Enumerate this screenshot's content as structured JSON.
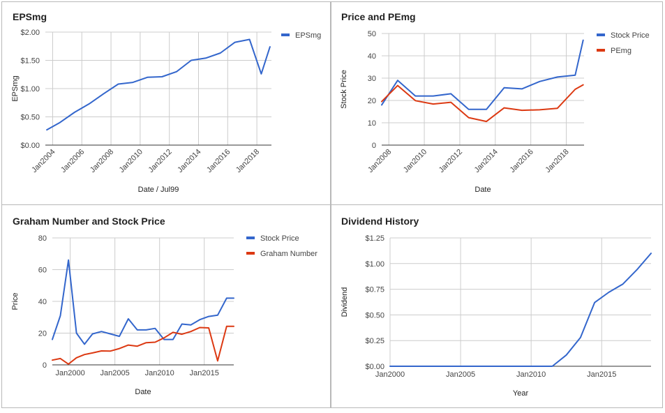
{
  "colors": {
    "blue": "#3366cc",
    "red": "#dc3912"
  },
  "chart_data": [
    {
      "type": "line",
      "title": "EPSmg",
      "xlabel": "Date / Jul99",
      "ylabel": "EPSmg",
      "xlim": [
        2003.5,
        2019.0
      ],
      "ylim": [
        0,
        2
      ],
      "xticks": [
        {
          "v": 2004,
          "label": "Jan2004"
        },
        {
          "v": 2006,
          "label": "Jan2006"
        },
        {
          "v": 2008,
          "label": "Jan2008"
        },
        {
          "v": 2010,
          "label": "Jan2010"
        },
        {
          "v": 2012,
          "label": "Jan2012"
        },
        {
          "v": 2014,
          "label": "Jan2014"
        },
        {
          "v": 2016,
          "label": "Jan2016"
        },
        {
          "v": 2018,
          "label": "Jan2018"
        }
      ],
      "yticks": [
        {
          "v": 0,
          "label": "$0.00"
        },
        {
          "v": 0.5,
          "label": "$0.50"
        },
        {
          "v": 1,
          "label": "$1.00"
        },
        {
          "v": 1.5,
          "label": "$1.50"
        },
        {
          "v": 2,
          "label": "$2.00"
        }
      ],
      "grid": true,
      "legend": "right",
      "series": [
        {
          "name": "EPSmg",
          "color": "#3366cc",
          "x": [
            2003.6,
            2004.5,
            2005.5,
            2006.5,
            2007.5,
            2008.5,
            2009.5,
            2010.5,
            2011.5,
            2012.5,
            2013.5,
            2014.5,
            2015.5,
            2016.5,
            2017.5,
            2018.3,
            2018.9
          ],
          "y": [
            0.27,
            0.4,
            0.58,
            0.73,
            0.91,
            1.08,
            1.11,
            1.2,
            1.21,
            1.3,
            1.5,
            1.54,
            1.63,
            1.82,
            1.87,
            1.26,
            1.74
          ]
        }
      ]
    },
    {
      "type": "line",
      "title": "Price and PEmg",
      "xlabel": "Date",
      "ylabel": "Stock Price",
      "xlim": [
        2007.6,
        2019.0
      ],
      "ylim": [
        0,
        50
      ],
      "xticks": [
        {
          "v": 2008,
          "label": "Jan2008"
        },
        {
          "v": 2010,
          "label": "Jan2010"
        },
        {
          "v": 2012,
          "label": "Jan2012"
        },
        {
          "v": 2014,
          "label": "Jan2014"
        },
        {
          "v": 2016,
          "label": "Jan2016"
        },
        {
          "v": 2018,
          "label": "Jan2018"
        }
      ],
      "yticks": [
        {
          "v": 0,
          "label": "0"
        },
        {
          "v": 10,
          "label": "10"
        },
        {
          "v": 20,
          "label": "20"
        },
        {
          "v": 30,
          "label": "30"
        },
        {
          "v": 40,
          "label": "40"
        },
        {
          "v": 50,
          "label": "50"
        }
      ],
      "grid": true,
      "legend": "right",
      "series": [
        {
          "name": "Stock Price",
          "color": "#3366cc",
          "x": [
            2007.6,
            2008.5,
            2009.5,
            2010.5,
            2011.5,
            2012.5,
            2013.5,
            2014.5,
            2015.5,
            2016.5,
            2017.5,
            2018.5,
            2018.95
          ],
          "y": [
            18,
            29,
            22,
            22,
            23,
            16,
            16,
            25.7,
            25.2,
            28.5,
            30.5,
            31.3,
            47
          ]
        },
        {
          "name": "PEmg",
          "color": "#dc3912",
          "x": [
            2007.6,
            2008.5,
            2009.5,
            2010.5,
            2011.5,
            2012.5,
            2013.5,
            2014.5,
            2015.5,
            2016.5,
            2017.5,
            2018.5,
            2018.95
          ],
          "y": [
            19.5,
            26.7,
            19.9,
            18.4,
            19.2,
            12.3,
            10.6,
            16.7,
            15.6,
            15.8,
            16.5,
            25,
            27
          ]
        }
      ]
    },
    {
      "type": "line",
      "title": "Graham Number and Stock Price",
      "xlabel": "Date",
      "ylabel": "Price",
      "xlim": [
        1998.0,
        2018.3
      ],
      "ylim": [
        0,
        80
      ],
      "xticks": [
        {
          "v": 2000,
          "label": "Jan2000"
        },
        {
          "v": 2005,
          "label": "Jan2005"
        },
        {
          "v": 2010,
          "label": "Jan2010"
        },
        {
          "v": 2015,
          "label": "Jan2015"
        }
      ],
      "yticks": [
        {
          "v": 0,
          "label": "0"
        },
        {
          "v": 20,
          "label": "20"
        },
        {
          "v": 40,
          "label": "40"
        },
        {
          "v": 60,
          "label": "60"
        },
        {
          "v": 80,
          "label": "80"
        }
      ],
      "grid": true,
      "legend": "right",
      "series": [
        {
          "name": "Stock Price",
          "color": "#3366cc",
          "x": [
            1998.0,
            1998.9,
            1999.8,
            2000.7,
            2001.6,
            2002.5,
            2003.5,
            2004.5,
            2005.5,
            2006.5,
            2007.5,
            2008.5,
            2009.5,
            2010.5,
            2011.5,
            2012.5,
            2013.5,
            2014.5,
            2015.5,
            2016.5,
            2017.5,
            2018.3
          ],
          "y": [
            16,
            31,
            66,
            20,
            13,
            19.5,
            21,
            19.5,
            18,
            29,
            22,
            22,
            23,
            16,
            16,
            25.7,
            25.2,
            28.5,
            30.5,
            31.3,
            42,
            42
          ]
        },
        {
          "name": "Graham Number",
          "color": "#dc3912",
          "x": [
            1998.0,
            1998.9,
            1999.8,
            2000.7,
            2001.6,
            2002.5,
            2003.5,
            2004.5,
            2005.5,
            2006.5,
            2007.5,
            2008.5,
            2009.5,
            2010.5,
            2011.5,
            2012.5,
            2013.5,
            2014.5,
            2015.5,
            2016.5,
            2017.5,
            2018.3
          ],
          "y": [
            3,
            4,
            0.5,
            4.5,
            6.5,
            7.5,
            8.8,
            8.7,
            10.3,
            12.5,
            11.8,
            14,
            14.3,
            17,
            20.5,
            19.3,
            21,
            23.5,
            23.3,
            2.5,
            24.3,
            24.3
          ]
        }
      ]
    },
    {
      "type": "line",
      "title": "Dividend History",
      "xlabel": "Year",
      "ylabel": "Dividend",
      "xlim": [
        2000,
        2018.5
      ],
      "ylim": [
        0,
        1.25
      ],
      "xticks": [
        {
          "v": 2000,
          "label": "Jan2000"
        },
        {
          "v": 2005,
          "label": "Jan2005"
        },
        {
          "v": 2010,
          "label": "Jan2010"
        },
        {
          "v": 2015,
          "label": "Jan2015"
        }
      ],
      "yticks": [
        {
          "v": 0,
          "label": "$0.00"
        },
        {
          "v": 0.25,
          "label": "$0.25"
        },
        {
          "v": 0.5,
          "label": "$0.50"
        },
        {
          "v": 0.75,
          "label": "$0.75"
        },
        {
          "v": 1,
          "label": "$1.00"
        },
        {
          "v": 1.25,
          "label": "$1.25"
        }
      ],
      "grid": true,
      "legend": "none",
      "series": [
        {
          "name": "",
          "color": "#3366cc",
          "x": [
            2000,
            2011.5,
            2012.5,
            2013.5,
            2014.5,
            2015.5,
            2016.5,
            2017.5,
            2018.5
          ],
          "y": [
            0,
            0,
            0.11,
            0.28,
            0.62,
            0.72,
            0.8,
            0.94,
            1.1
          ]
        }
      ]
    }
  ]
}
